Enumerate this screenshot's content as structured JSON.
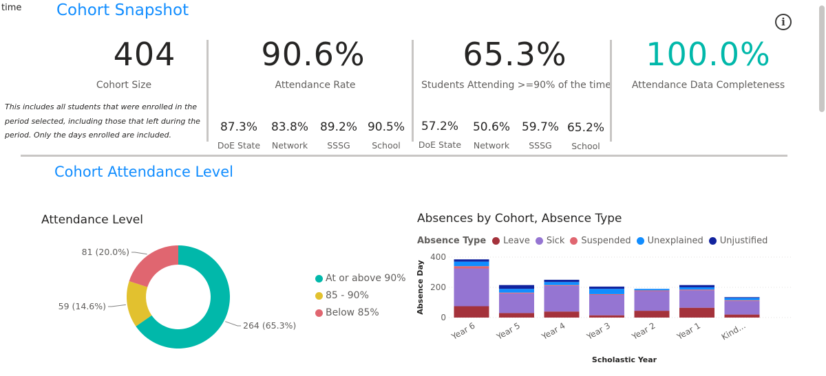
{
  "corner_text": "time",
  "header": {
    "title": "Cohort Snapshot"
  },
  "kpis": {
    "cohort_size": {
      "value": "404",
      "label": "Cohort Size"
    },
    "attendance_rate": {
      "value": "90.6%",
      "label": "Attendance Rate"
    },
    "students_attending": {
      "value": "65.3%",
      "label": "Students Attending >=90% of the time"
    },
    "completeness": {
      "value": "100.0%",
      "label": "Attendance Data Completeness"
    }
  },
  "note": "This includes all students that were enrolled in the period selected, including those that left during the period. Only the days enrolled are included.",
  "attendance_breakdown": [
    {
      "value": "87.3%",
      "label": "DoE State"
    },
    {
      "value": "83.8%",
      "label": "Network"
    },
    {
      "value": "89.2%",
      "label": "SSSG"
    },
    {
      "value": "90.5%",
      "label": "School"
    }
  ],
  "attending_breakdown": [
    {
      "value": "57.2%",
      "label": "DoE State"
    },
    {
      "value": "50.6%",
      "label": "Network"
    },
    {
      "value": "59.7%",
      "label": "SSSG"
    },
    {
      "value": "65.2%",
      "label": "School"
    }
  ],
  "section2": {
    "title": "Cohort Attendance Level"
  },
  "colors": {
    "accent": "#118DFF",
    "teal": "#01B8AA",
    "yellow": "#E2C12F",
    "red": "#E06670",
    "leave": "#A4323B",
    "sick": "#9575D2",
    "suspended": "#E06670",
    "unexplained": "#118DFF",
    "unjustified": "#12239E"
  },
  "chart_data": [
    {
      "type": "pie",
      "title": "Attendance Level",
      "categories": [
        "At or above 90%",
        "85 - 90%",
        "Below 85%"
      ],
      "values": [
        264,
        59,
        81
      ],
      "data_labels": [
        "264 (65.3%)",
        "59 (14.6%)",
        "81 (20.0%)"
      ],
      "legend": "right"
    },
    {
      "type": "bar",
      "stacked": true,
      "title": "Absences by Cohort, Absence Type",
      "legend_title": "Absence Type",
      "categories": [
        "Year 6",
        "Year 5",
        "Year 4",
        "Year 3",
        "Year 2",
        "Year 1",
        "Kind..."
      ],
      "series": [
        {
          "name": "Leave",
          "values": [
            75,
            30,
            40,
            15,
            45,
            65,
            20
          ]
        },
        {
          "name": "Sick",
          "values": [
            250,
            130,
            170,
            135,
            130,
            115,
            90
          ]
        },
        {
          "name": "Suspended",
          "values": [
            15,
            5,
            5,
            5,
            5,
            5,
            5
          ]
        },
        {
          "name": "Unexplained",
          "values": [
            30,
            25,
            20,
            35,
            10,
            15,
            15
          ]
        },
        {
          "name": "Unjustified",
          "values": [
            15,
            25,
            15,
            15,
            0,
            15,
            5
          ]
        }
      ],
      "xlabel": "Scholastic Year",
      "ylabel": "Absence Day",
      "yticks": [
        "0",
        "200",
        "400"
      ],
      "ylim": [
        0,
        420
      ],
      "grid": true
    }
  ]
}
